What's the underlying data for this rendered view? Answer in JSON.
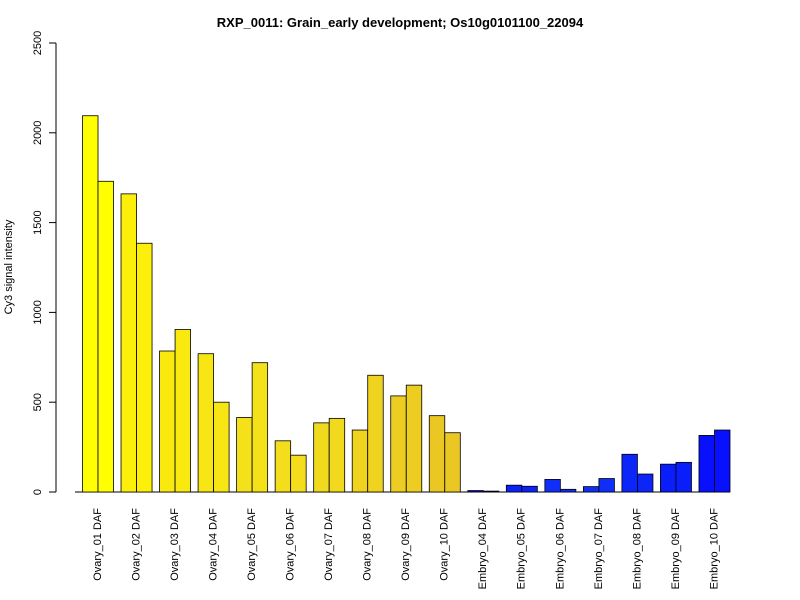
{
  "chart_data": {
    "type": "bar",
    "title": "RXP_0011: Grain_early development; Os10g0101100_22094",
    "ylabel": "Cy3 signal intensity",
    "xlabel": "",
    "ylim": [
      0,
      2500
    ],
    "yticks": [
      0,
      500,
      1000,
      1500,
      2000,
      2500
    ],
    "grid": false,
    "legend": "none",
    "categories": [
      "Ovary_01 DAF",
      "Ovary_02 DAF",
      "Ovary_03 DAF",
      "Ovary_04 DAF",
      "Ovary_05 DAF",
      "Ovary_06 DAF",
      "Ovary_07 DAF",
      "Ovary_08 DAF",
      "Ovary_09 DAF",
      "Ovary_10 DAF",
      "Embryo_04 DAF",
      "Embryo_05 DAF",
      "Embryo_06 DAF",
      "Embryo_07 DAF",
      "Embryo_08 DAF",
      "Embryo_09 DAF",
      "Embryo_10 DAF"
    ],
    "series": [
      {
        "values": [
          2095,
          1660,
          785,
          770,
          415,
          285,
          385,
          345,
          535,
          425,
          8,
          38,
          70,
          30,
          210,
          155,
          315
        ]
      },
      {
        "values": [
          1730,
          1385,
          905,
          500,
          720,
          205,
          410,
          650,
          595,
          330,
          5,
          32,
          15,
          75,
          100,
          165,
          345
        ]
      }
    ],
    "colors": [
      "#ffff00",
      "#fcef0a",
      "#f9e90f",
      "#f7e514",
      "#f5e11a",
      "#f3dd1c",
      "#f1d91e",
      "#efd31f",
      "#edcd21",
      "#ebc723",
      "#0000ff",
      "#0a22fa",
      "#0f2ff8",
      "#0f2ff8",
      "#0c26f9",
      "#0a1efb",
      "#0810fd"
    ]
  }
}
